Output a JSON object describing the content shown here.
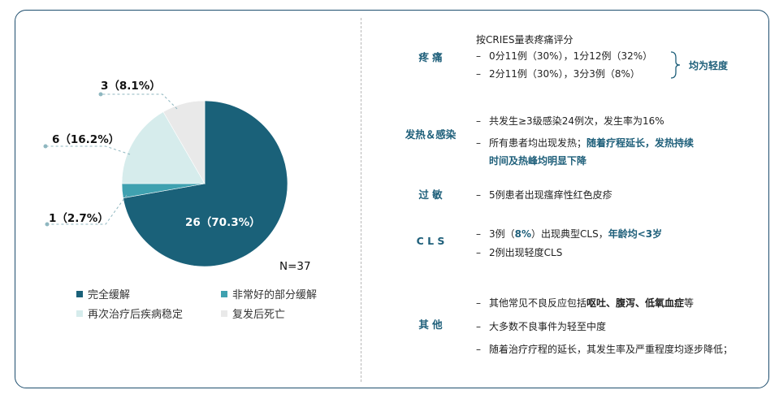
{
  "chart_data": {
    "type": "pie",
    "total_label": "N=37",
    "slices": [
      {
        "name": "完全缓解",
        "count": 26,
        "percent": 70.3,
        "label": "26（70.3%）",
        "color": "#1a6179"
      },
      {
        "name": "非常好的部分缓解",
        "count": 1,
        "percent": 2.7,
        "label": "1（2.7%）",
        "color": "#3fa1b0"
      },
      {
        "name": "再次治疗后疾病稳定",
        "count": 6,
        "percent": 16.2,
        "label": "6（16.2%）",
        "color": "#d6ecec"
      },
      {
        "name": "复发后死亡",
        "count": 3,
        "percent": 8.1,
        "label": "3（8.1%）",
        "color": "#e9e9e9"
      }
    ]
  },
  "table": {
    "pain": {
      "category": "疼 痛",
      "intro": "按CRIES量表疼痛评分",
      "line1": "0分11例（30%），1分12例（32%）",
      "line2": "2分11例（30%），3分3例（8%）",
      "summary": "均为轻度"
    },
    "fever": {
      "category": "发热＆感染",
      "line1": "共发生≥3级感染24例次，发生率为16%",
      "line2_plain": "所有患者均出现发热；",
      "line2_hl": "随着疗程延长，发热持续",
      "line3_hl": "时间及热峰均明显下降"
    },
    "allergy": {
      "category": "过 敏",
      "line1": "5例患者出现瘙痒性红色皮疹"
    },
    "cls": {
      "category": "C L S",
      "l1_a": "3例（",
      "l1_b": "8%",
      "l1_c": "）出现典型CLS，",
      "l1_d": "年龄均<3岁",
      "line2": "2例出现轻度CLS"
    },
    "other": {
      "category": "其 他",
      "l1_a": "其他常见不良反应包括",
      "l1_b": "呕吐、腹泻、低氧血症",
      "l1_c": "等",
      "line2": "大多数不良事件为轻至中度",
      "line3": "随着治疗疗程的延长，其发生率及严重程度均逐步降低；"
    }
  }
}
